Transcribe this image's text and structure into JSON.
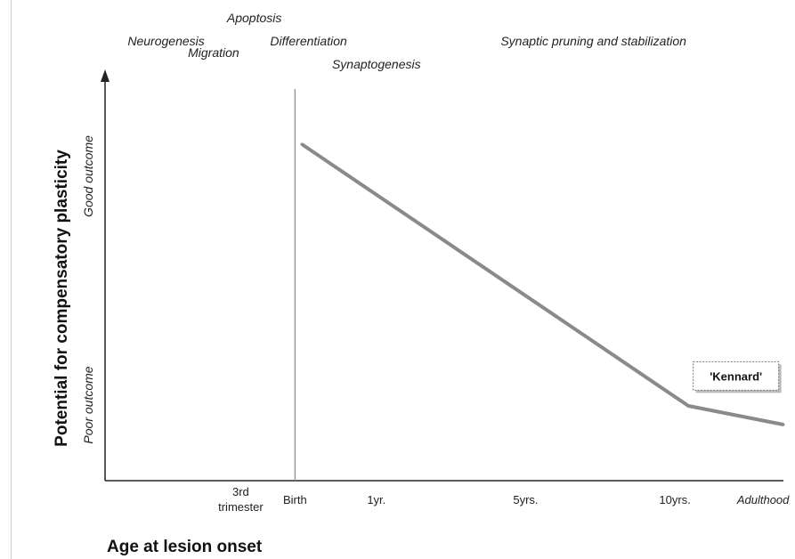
{
  "chart_data": {
    "type": "line",
    "title": "",
    "xlabel": "Age at lesion onset",
    "ylabel": "Potential for compensatory plasticity",
    "y_outcome_labels": {
      "high": "Good outcome",
      "low": "Poor outcome"
    },
    "x_ticks": [
      {
        "label_line1": "3rd",
        "label_line2": "trimester",
        "pos": 0.2
      },
      {
        "label_line1": "Birth",
        "label_line2": "",
        "pos": 0.28
      },
      {
        "label_line1": "1yr.",
        "label_line2": "",
        "pos": 0.4
      },
      {
        "label_line1": "5yrs.",
        "label_line2": "",
        "pos": 0.62
      },
      {
        "label_line1": "10yrs.",
        "label_line2": "",
        "pos": 0.84
      },
      {
        "label_line1": "Adulthood",
        "label_line2": "",
        "pos": 0.97
      }
    ],
    "birth_marker": {
      "label": "Birth",
      "pos": 0.28
    },
    "developmental_stages": [
      {
        "label": "Neurogenesis",
        "pos": 0.09,
        "row": 2
      },
      {
        "label": "Apoptosis",
        "pos": 0.22,
        "row": 0
      },
      {
        "label": "Differentiation",
        "pos": 0.3,
        "row": 2
      },
      {
        "label": "Migration",
        "pos": 0.16,
        "row": 3
      },
      {
        "label": "Synaptogenesis",
        "pos": 0.4,
        "row": 4
      },
      {
        "label": "Synaptic pruning and stabilization",
        "pos": 0.72,
        "row": 2
      }
    ],
    "series": [
      {
        "points": [
          {
            "x": 0.29,
            "y": 0.9
          },
          {
            "x": 0.86,
            "y": 0.2
          },
          {
            "x": 1.0,
            "y": 0.15
          }
        ]
      }
    ],
    "annotation": {
      "label": "'Kennard'",
      "x": 0.93,
      "y": 0.28
    },
    "xlim": [
      0,
      1
    ],
    "ylim": [
      0,
      1
    ],
    "grid": false,
    "legend": "none"
  }
}
